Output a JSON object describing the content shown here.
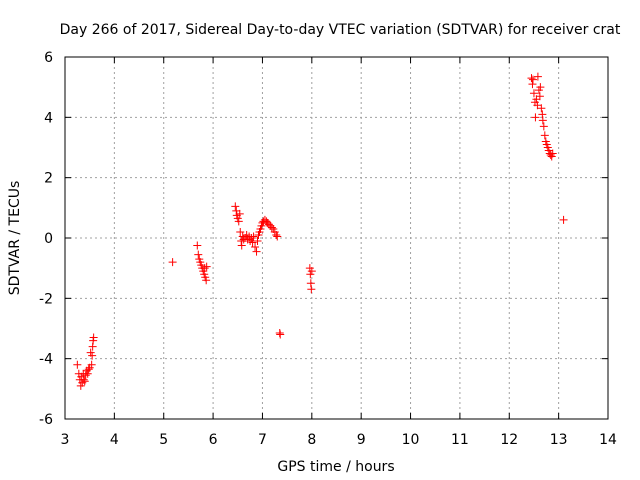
{
  "chart_data": {
    "type": "scatter",
    "title": "Day 266 of 2017, Sidereal Day-to-day VTEC variation (SDTVAR) for receiver crat",
    "xlabel": "GPS time / hours",
    "ylabel": "SDTVAR / TECUs",
    "xlim": [
      3,
      14
    ],
    "ylim": [
      -6,
      6
    ],
    "xticks": [
      "3",
      "4",
      "5",
      "6",
      "7",
      "8",
      "9",
      "10",
      "11",
      "12",
      "13",
      "14"
    ],
    "yticks": [
      "-6",
      "-4",
      "-2",
      "0",
      "2",
      "4",
      "6"
    ],
    "grid": true,
    "marker": "plus",
    "series": [
      {
        "name": "SDTVAR",
        "color": "#ff0000",
        "points": [
          [
            3.25,
            -4.2
          ],
          [
            3.28,
            -4.5
          ],
          [
            3.3,
            -4.7
          ],
          [
            3.32,
            -4.9
          ],
          [
            3.33,
            -4.6
          ],
          [
            3.35,
            -4.8
          ],
          [
            3.37,
            -4.5
          ],
          [
            3.38,
            -4.7
          ],
          [
            3.4,
            -4.75
          ],
          [
            3.42,
            -4.55
          ],
          [
            3.44,
            -4.4
          ],
          [
            3.46,
            -4.5
          ],
          [
            3.48,
            -4.35
          ],
          [
            3.5,
            -4.3
          ],
          [
            3.52,
            -3.8
          ],
          [
            3.54,
            -4.2
          ],
          [
            3.55,
            -3.9
          ],
          [
            3.56,
            -3.6
          ],
          [
            3.57,
            -3.4
          ],
          [
            3.58,
            -3.3
          ],
          [
            5.18,
            -0.8
          ],
          [
            5.68,
            -0.25
          ],
          [
            5.7,
            -0.55
          ],
          [
            5.72,
            -0.7
          ],
          [
            5.74,
            -0.8
          ],
          [
            5.76,
            -0.9
          ],
          [
            5.78,
            -1.0
          ],
          [
            5.8,
            -1.1
          ],
          [
            5.82,
            -1.2
          ],
          [
            5.84,
            -1.3
          ],
          [
            5.86,
            -1.4
          ],
          [
            5.83,
            -1.0
          ],
          [
            5.87,
            -0.95
          ],
          [
            6.45,
            1.05
          ],
          [
            6.47,
            0.9
          ],
          [
            6.48,
            0.75
          ],
          [
            6.5,
            0.65
          ],
          [
            6.52,
            0.55
          ],
          [
            6.54,
            0.8
          ],
          [
            6.55,
            0.2
          ],
          [
            6.57,
            -0.1
          ],
          [
            6.58,
            -0.25
          ],
          [
            6.6,
            0.05
          ],
          [
            6.62,
            -0.05
          ],
          [
            6.65,
            0.0
          ],
          [
            6.68,
            0.1
          ],
          [
            6.7,
            -0.05
          ],
          [
            6.73,
            0.05
          ],
          [
            6.75,
            -0.1
          ],
          [
            6.78,
            0.0
          ],
          [
            6.8,
            -0.15
          ],
          [
            6.82,
            0.05
          ],
          [
            6.85,
            -0.3
          ],
          [
            6.88,
            -0.45
          ],
          [
            6.9,
            -0.1
          ],
          [
            6.92,
            0.1
          ],
          [
            6.94,
            0.2
          ],
          [
            6.96,
            0.3
          ],
          [
            6.98,
            0.4
          ],
          [
            7.0,
            0.5
          ],
          [
            7.02,
            0.55
          ],
          [
            7.05,
            0.6
          ],
          [
            7.08,
            0.55
          ],
          [
            7.1,
            0.5
          ],
          [
            7.13,
            0.45
          ],
          [
            7.16,
            0.4
          ],
          [
            7.19,
            0.35
          ],
          [
            7.22,
            0.3
          ],
          [
            7.25,
            0.2
          ],
          [
            7.28,
            0.1
          ],
          [
            7.3,
            0.05
          ],
          [
            7.35,
            -3.15
          ],
          [
            7.36,
            -3.2
          ],
          [
            7.96,
            -1.0
          ],
          [
            7.97,
            -1.2
          ],
          [
            7.98,
            -1.5
          ],
          [
            7.99,
            -1.7
          ],
          [
            8.0,
            -1.1
          ],
          [
            12.45,
            5.3
          ],
          [
            12.47,
            5.1
          ],
          [
            12.48,
            5.25
          ],
          [
            12.5,
            4.8
          ],
          [
            12.52,
            4.5
          ],
          [
            12.53,
            4.0
          ],
          [
            12.55,
            4.6
          ],
          [
            12.57,
            4.4
          ],
          [
            12.58,
            5.35
          ],
          [
            12.6,
            4.9
          ],
          [
            12.62,
            4.7
          ],
          [
            12.63,
            5.0
          ],
          [
            12.65,
            4.3
          ],
          [
            12.67,
            4.1
          ],
          [
            12.68,
            3.9
          ],
          [
            12.7,
            3.7
          ],
          [
            12.72,
            3.4
          ],
          [
            12.74,
            3.2
          ],
          [
            12.76,
            3.1
          ],
          [
            12.78,
            3.0
          ],
          [
            12.8,
            2.9
          ],
          [
            12.82,
            2.8
          ],
          [
            12.84,
            2.75
          ],
          [
            12.86,
            2.7
          ],
          [
            12.88,
            2.8
          ],
          [
            13.1,
            0.6
          ]
        ]
      }
    ]
  }
}
